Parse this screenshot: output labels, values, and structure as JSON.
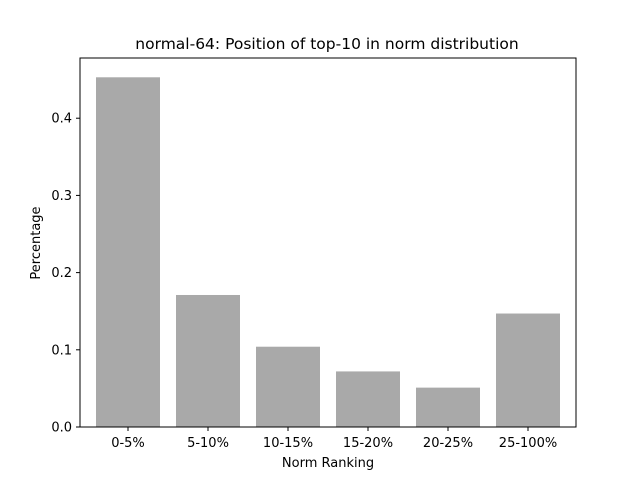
{
  "chart_data": {
    "type": "bar",
    "title": "normal-64: Position of top-10 in norm distribution",
    "xlabel": "Norm Ranking",
    "ylabel": "Percentage",
    "categories": [
      "0-5%",
      "5-10%",
      "10-15%",
      "15-20%",
      "20-25%",
      "25-100%"
    ],
    "values": [
      0.453,
      0.171,
      0.104,
      0.072,
      0.051,
      0.147
    ],
    "ylim": [
      0,
      0.478
    ],
    "yticks": [
      0.0,
      0.1,
      0.2,
      0.3,
      0.4
    ],
    "ytick_labels": [
      "0.0",
      "0.1",
      "0.2",
      "0.3",
      "0.4"
    ],
    "bar_color": "#a9a9a9",
    "grid": false,
    "legend": "none"
  }
}
